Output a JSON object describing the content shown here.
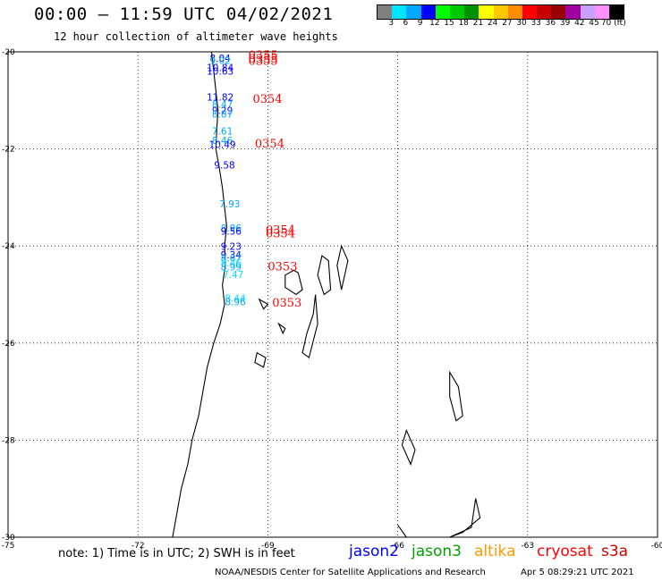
{
  "header": {
    "title": "00:00 – 11:59 UTC 04/02/2021",
    "subtitle": "12 hour collection of altimeter wave heights"
  },
  "legend": {
    "labels": [
      "3",
      "6",
      "9",
      "12",
      "15",
      "18",
      "21",
      "24",
      "27",
      "30",
      "33",
      "36",
      "39",
      "42",
      "45",
      "70 (ft)"
    ],
    "colors": [
      "#808080",
      "#00e5ff",
      "#00a8ff",
      "#0000ff",
      "#00ff00",
      "#00c800",
      "#009000",
      "#ffff00",
      "#ffc800",
      "#ff8c00",
      "#ff0000",
      "#c80000",
      "#960000",
      "#a000a0",
      "#c8a0ff",
      "#ff90ff",
      "#000000"
    ]
  },
  "map": {
    "lat_ticks": [
      "-20",
      "-22",
      "-24",
      "-26",
      "-28",
      "-30"
    ],
    "lon_ticks": [
      "-75",
      "-72",
      "-69",
      "-66",
      "-63",
      "-60"
    ],
    "wave_labels": [
      {
        "lon": -70.1,
        "lat": -20.2,
        "text": "8.04",
        "color": "#0000ff"
      },
      {
        "lon": -70.1,
        "lat": -20.25,
        "text": "9.02",
        "color": "#00a8ff"
      },
      {
        "lon": -70.1,
        "lat": -20.4,
        "text": "10.84",
        "color": "#0000ff"
      },
      {
        "lon": -70.1,
        "lat": -20.47,
        "text": "10.63",
        "color": "#0000ff"
      },
      {
        "lon": -70.1,
        "lat": -21.0,
        "text": "11.82",
        "color": "#0000ff"
      },
      {
        "lon": -70.05,
        "lat": -21.15,
        "text": "8.47",
        "color": "#00a8ff"
      },
      {
        "lon": -70.05,
        "lat": -21.28,
        "text": "9.29",
        "color": "#0000ff"
      },
      {
        "lon": -70.05,
        "lat": -21.35,
        "text": "8.87",
        "color": "#00a8ff"
      },
      {
        "lon": -70.05,
        "lat": -21.7,
        "text": "7.61",
        "color": "#00a8ff"
      },
      {
        "lon": -70.05,
        "lat": -21.9,
        "text": "8.46",
        "color": "#00a8ff"
      },
      {
        "lon": -70.05,
        "lat": -21.98,
        "text": "10.49",
        "color": "#0000ff"
      },
      {
        "lon": -70.0,
        "lat": -22.4,
        "text": "9.58",
        "color": "#0000ff"
      },
      {
        "lon": -69.88,
        "lat": -23.2,
        "text": "7.93",
        "color": "#00a8ff"
      },
      {
        "lon": -69.85,
        "lat": -23.7,
        "text": "8.96",
        "color": "#00a8ff"
      },
      {
        "lon": -69.85,
        "lat": -23.77,
        "text": "9.56",
        "color": "#0000ff"
      },
      {
        "lon": -69.85,
        "lat": -24.08,
        "text": "9.23",
        "color": "#0000ff"
      },
      {
        "lon": -69.85,
        "lat": -24.25,
        "text": "9.34",
        "color": "#0000ff"
      },
      {
        "lon": -69.85,
        "lat": -24.32,
        "text": "8.67",
        "color": "#00a8ff"
      },
      {
        "lon": -69.85,
        "lat": -24.42,
        "text": "8.46",
        "color": "#00e5ff"
      },
      {
        "lon": -69.85,
        "lat": -24.5,
        "text": "8.99",
        "color": "#00a8ff"
      },
      {
        "lon": -69.8,
        "lat": -24.66,
        "text": "7.47",
        "color": "#00e5ff"
      },
      {
        "lon": -69.75,
        "lat": -25.15,
        "text": "8.44",
        "color": "#00e5ff"
      },
      {
        "lon": -69.75,
        "lat": -25.22,
        "text": "8.96",
        "color": "#00a8ff"
      }
    ],
    "time_labels": [
      {
        "lon": -69.45,
        "lat": -20.15,
        "text": "0355",
        "color": "#ff0000"
      },
      {
        "lon": -69.45,
        "lat": -20.22,
        "text": "0355",
        "color": "#ff0000"
      },
      {
        "lon": -69.45,
        "lat": -20.27,
        "text": "0355",
        "color": "#ff0000"
      },
      {
        "lon": -69.35,
        "lat": -21.05,
        "text": "0354",
        "color": "#ff0000"
      },
      {
        "lon": -69.3,
        "lat": -21.97,
        "text": "0354",
        "color": "#ff0000"
      },
      {
        "lon": -69.05,
        "lat": -23.75,
        "text": "0354",
        "color": "#ff0000"
      },
      {
        "lon": -69.05,
        "lat": -23.82,
        "text": "0354",
        "color": "#ff0000"
      },
      {
        "lon": -69.0,
        "lat": -24.5,
        "text": "0353",
        "color": "#ff0000"
      },
      {
        "lon": -68.9,
        "lat": -25.25,
        "text": "0353",
        "color": "#ff0000"
      }
    ]
  },
  "footer": {
    "note": "note: 1) Time is in UTC; 2) SWH is in feet",
    "satellites": [
      {
        "name": "jason2",
        "color": "#0000ff"
      },
      {
        "name": "jason3",
        "color": "#00a000"
      },
      {
        "name": "altika",
        "color": "#ff9900"
      },
      {
        "name": "cryosat",
        "color": "#ff0000"
      },
      {
        "name": "s3a",
        "color": "#c80000"
      }
    ],
    "credit": "NOAA/NESDIS Center for Satellite Applications and Research",
    "generated": "Apr  5 08:29:21 UTC 2021"
  }
}
